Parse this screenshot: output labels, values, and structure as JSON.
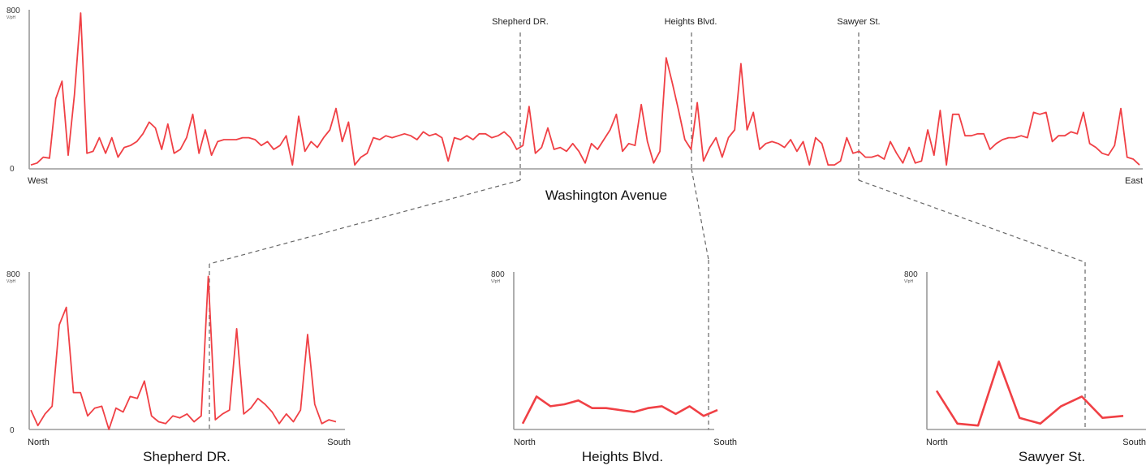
{
  "colors": {
    "series": "#f04045",
    "axis": "#9a9a9a",
    "guide": "#666666"
  },
  "chart_data": [
    {
      "type": "line",
      "title": "Washington Avenue",
      "ylim": [
        0,
        800
      ],
      "y_unit": "V/pH",
      "y_ticks": [
        "0",
        "800"
      ],
      "x_start_label": "West",
      "x_end_label": "East",
      "street_labels": [
        "Shepherd DR.",
        "Heights Blvd.",
        "Sawyer St."
      ],
      "values": [
        20,
        30,
        60,
        55,
        360,
        450,
        70,
        380,
        800,
        80,
        90,
        160,
        80,
        160,
        60,
        110,
        120,
        140,
        180,
        240,
        210,
        100,
        230,
        80,
        100,
        160,
        280,
        80,
        200,
        70,
        140,
        150,
        150,
        150,
        160,
        160,
        150,
        120,
        140,
        100,
        120,
        170,
        20,
        270,
        90,
        140,
        110,
        160,
        200,
        310,
        140,
        240,
        20,
        60,
        80,
        160,
        150,
        170,
        160,
        170,
        180,
        170,
        150,
        190,
        170,
        180,
        160,
        40,
        160,
        150,
        170,
        150,
        180,
        180,
        160,
        170,
        190,
        160,
        100,
        120,
        320,
        80,
        110,
        210,
        100,
        110,
        90,
        130,
        90,
        30,
        130,
        100,
        150,
        200,
        280,
        90,
        130,
        120,
        330,
        140,
        30,
        90,
        570,
        440,
        300,
        150,
        100,
        340,
        40,
        110,
        160,
        60,
        160,
        200,
        540,
        200,
        290,
        100,
        130,
        140,
        130,
        110,
        150,
        90,
        140,
        20,
        160,
        130,
        20,
        20,
        40,
        160,
        80,
        90,
        60,
        60,
        70,
        50,
        140,
        80,
        30,
        110,
        30,
        40,
        200,
        70,
        300,
        20,
        280,
        280,
        170,
        170,
        180,
        180,
        100,
        130,
        150,
        160,
        160,
        170,
        160,
        290,
        280,
        290,
        140,
        170,
        170,
        190,
        180,
        290,
        130,
        110,
        80,
        70,
        120,
        310,
        60,
        50,
        20
      ],
      "style": "thin"
    },
    {
      "type": "line",
      "title": "Shepherd DR.",
      "ylim": [
        0,
        800
      ],
      "y_unit": "V/pH",
      "y_ticks": [
        "0",
        "800"
      ],
      "x_start_label": "North",
      "x_end_label": "South",
      "values": [
        100,
        20,
        80,
        120,
        540,
        630,
        190,
        190,
        70,
        110,
        120,
        0,
        110,
        90,
        170,
        160,
        250,
        70,
        40,
        30,
        70,
        60,
        80,
        40,
        70,
        790,
        50,
        80,
        100,
        520,
        80,
        110,
        160,
        130,
        90,
        30,
        80,
        40,
        100,
        490,
        130,
        30,
        50,
        40
      ],
      "style": "thin"
    },
    {
      "type": "line",
      "title": "Heights Blvd.",
      "ylim": [
        0,
        800
      ],
      "y_unit": "V/pH",
      "y_ticks": [
        "800"
      ],
      "x_start_label": "North",
      "x_end_label": "South",
      "values": [
        30,
        170,
        120,
        130,
        150,
        110,
        110,
        100,
        90,
        110,
        120,
        80,
        120,
        70,
        100
      ],
      "style": "bold"
    },
    {
      "type": "line",
      "title": "Sawyer St.",
      "ylim": [
        0,
        800
      ],
      "y_unit": "V/pH",
      "y_ticks": [
        "800"
      ],
      "x_start_label": "North",
      "x_end_label": "South",
      "values": [
        200,
        30,
        20,
        350,
        60,
        30,
        120,
        170,
        60,
        70
      ],
      "style": "bold"
    }
  ]
}
